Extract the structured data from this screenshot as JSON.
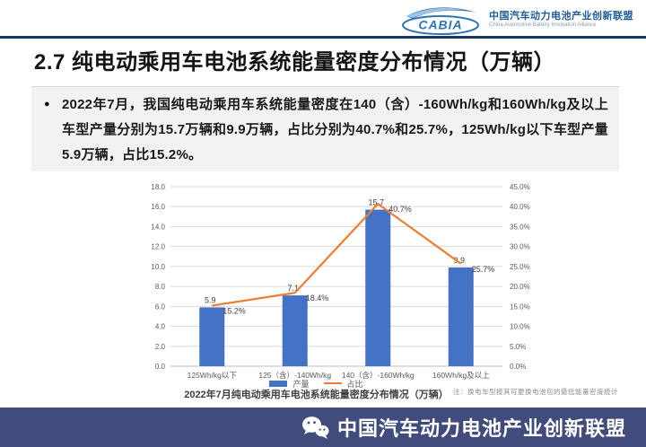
{
  "header": {
    "logo_text": "CABIA",
    "org_cn": "中国汽车动力电池产业创新联盟",
    "org_en": "China Automotive Battery Innovation Alliance"
  },
  "title": "2.7 纯电动乘用车电池系统能量密度分布情况（万辆）",
  "bullet": {
    "marker": "●",
    "text": "2022年7月，我国纯电动乘用车系统能量密度在140（含）-160Wh/kg和160Wh/kg及以上车型产量分别为15.7万辆和9.9万辆，占比分别为40.7%和25.7%，125Wh/kg以下车型产量5.9万辆，占比15.2%。"
  },
  "chart_data": {
    "type": "bar",
    "categories": [
      "125Wh/kg以下",
      "125（含）-140Wh/kg",
      "140（含）-160Wh/kg",
      "160Wh/kg及以上"
    ],
    "series": [
      {
        "name": "产量",
        "type": "bar",
        "axis": "left",
        "color": "#4472C4",
        "values": [
          5.9,
          7.1,
          15.7,
          9.9
        ]
      },
      {
        "name": "占比",
        "type": "line",
        "axis": "right",
        "color": "#ED7D31",
        "unit": "%",
        "values": [
          15.2,
          18.4,
          40.7,
          25.7
        ]
      }
    ],
    "left_axis": {
      "min": 0,
      "max": 18,
      "step": 2,
      "tick_suffix": ""
    },
    "right_axis": {
      "min": 0,
      "max": 45,
      "step": 5,
      "tick_suffix": "%"
    },
    "grid": true,
    "legend_position": "bottom",
    "title": "2022年7月纯电动乘用车电池系统能量密度分布情况（万辆）",
    "note": "注：换电车型按其可更换电池包的最低能量密度统计"
  },
  "footer": {
    "org": "中国汽车动力电池产业创新联盟"
  },
  "colors": {
    "navy_rule": "#17375E",
    "footer_bg": "#424C7C",
    "bar": "#4472C4",
    "line": "#ED7D31",
    "grid": "#D9D9D9",
    "axis_text": "#595959",
    "data_label": "#404040",
    "bullet_bg": "#F2F2F2",
    "logo_blue": "#2E75B6"
  }
}
